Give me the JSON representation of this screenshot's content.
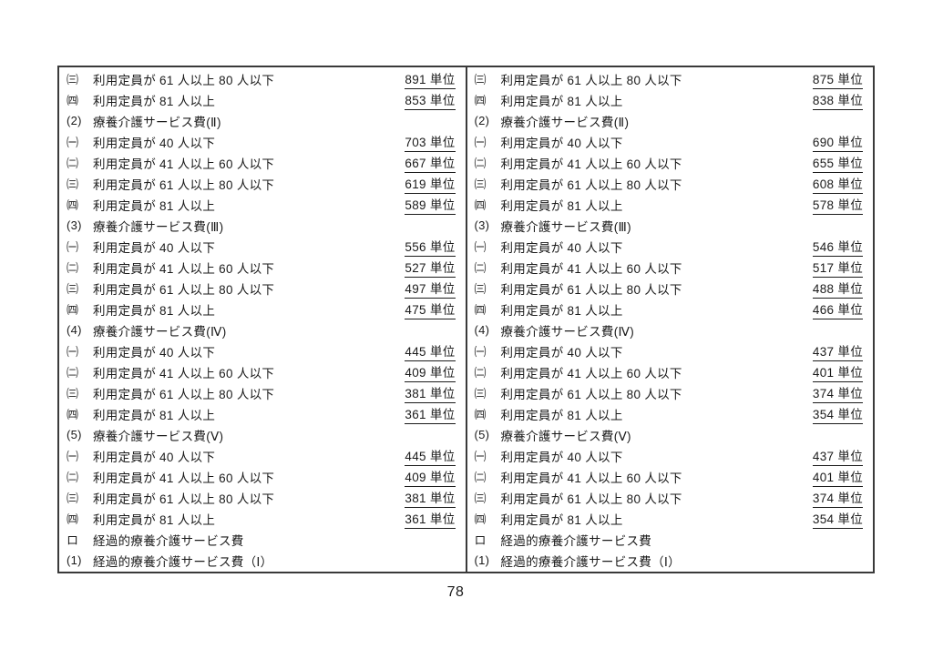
{
  "page": {
    "number": "78"
  },
  "table": {
    "border_color": "#3a3a3a",
    "text_color": "#1b1b1b"
  },
  "columns": [
    {
      "rows": [
        {
          "marker": "㈢",
          "label": "利用定員が 61 人以上 80 人以下",
          "value": "891 単位"
        },
        {
          "marker": "㈣",
          "label": "利用定員が 81 人以上",
          "value": "853 単位"
        },
        {
          "marker": "(2)",
          "label": "療養介護サービス費(Ⅱ)",
          "value": ""
        },
        {
          "marker": "㈠",
          "label": "利用定員が 40 人以下",
          "value": "703 単位"
        },
        {
          "marker": "㈡",
          "label": "利用定員が 41 人以上 60 人以下",
          "value": "667 単位"
        },
        {
          "marker": "㈢",
          "label": "利用定員が 61 人以上 80 人以下",
          "value": "619 単位"
        },
        {
          "marker": "㈣",
          "label": "利用定員が 81 人以上",
          "value": "589 単位"
        },
        {
          "marker": "(3)",
          "label": "療養介護サービス費(Ⅲ)",
          "value": ""
        },
        {
          "marker": "㈠",
          "label": "利用定員が 40 人以下",
          "value": "556 単位"
        },
        {
          "marker": "㈡",
          "label": "利用定員が 41 人以上 60 人以下",
          "value": "527 単位"
        },
        {
          "marker": "㈢",
          "label": "利用定員が 61 人以上 80 人以下",
          "value": "497 単位"
        },
        {
          "marker": "㈣",
          "label": "利用定員が 81 人以上",
          "value": "475 単位"
        },
        {
          "marker": "(4)",
          "label": "療養介護サービス費(Ⅳ)",
          "value": ""
        },
        {
          "marker": "㈠",
          "label": "利用定員が 40 人以下",
          "value": "445 単位"
        },
        {
          "marker": "㈡",
          "label": "利用定員が 41 人以上 60 人以下",
          "value": "409 単位"
        },
        {
          "marker": "㈢",
          "label": "利用定員が 61 人以上 80 人以下",
          "value": "381 単位"
        },
        {
          "marker": "㈣",
          "label": "利用定員が 81 人以上",
          "value": "361 単位"
        },
        {
          "marker": "(5)",
          "label": "療養介護サービス費(Ⅴ)",
          "value": ""
        },
        {
          "marker": "㈠",
          "label": "利用定員が 40 人以下",
          "value": "445 単位"
        },
        {
          "marker": "㈡",
          "label": "利用定員が 41 人以上 60 人以下",
          "value": "409 単位"
        },
        {
          "marker": "㈢",
          "label": "利用定員が 61 人以上 80 人以下",
          "value": "381 単位"
        },
        {
          "marker": "㈣",
          "label": "利用定員が 81 人以上",
          "value": "361 単位"
        },
        {
          "marker": "ロ",
          "label": "経過的療養介護サービス費",
          "value": ""
        },
        {
          "marker": "(1)",
          "label": "経過的療養介護サービス費（Ⅰ）",
          "value": ""
        }
      ]
    },
    {
      "rows": [
        {
          "marker": "㈢",
          "label": "利用定員が 61 人以上 80 人以下",
          "value": "875 単位"
        },
        {
          "marker": "㈣",
          "label": "利用定員が 81 人以上",
          "value": "838 単位"
        },
        {
          "marker": "(2)",
          "label": "療養介護サービス費(Ⅱ)",
          "value": ""
        },
        {
          "marker": "㈠",
          "label": "利用定員が 40 人以下",
          "value": "690 単位"
        },
        {
          "marker": "㈡",
          "label": "利用定員が 41 人以上 60 人以下",
          "value": "655 単位"
        },
        {
          "marker": "㈢",
          "label": "利用定員が 61 人以上 80 人以下",
          "value": "608 単位"
        },
        {
          "marker": "㈣",
          "label": "利用定員が 81 人以上",
          "value": "578 単位"
        },
        {
          "marker": "(3)",
          "label": "療養介護サービス費(Ⅲ)",
          "value": ""
        },
        {
          "marker": "㈠",
          "label": "利用定員が 40 人以下",
          "value": "546 単位"
        },
        {
          "marker": "㈡",
          "label": "利用定員が 41 人以上 60 人以下",
          "value": "517 単位"
        },
        {
          "marker": "㈢",
          "label": "利用定員が 61 人以上 80 人以下",
          "value": "488 単位"
        },
        {
          "marker": "㈣",
          "label": "利用定員が 81 人以上",
          "value": "466 単位"
        },
        {
          "marker": "(4)",
          "label": "療養介護サービス費(Ⅳ)",
          "value": ""
        },
        {
          "marker": "㈠",
          "label": "利用定員が 40 人以下",
          "value": "437 単位"
        },
        {
          "marker": "㈡",
          "label": "利用定員が 41 人以上 60 人以下",
          "value": "401 単位"
        },
        {
          "marker": "㈢",
          "label": "利用定員が 61 人以上 80 人以下",
          "value": "374 単位"
        },
        {
          "marker": "㈣",
          "label": "利用定員が 81 人以上",
          "value": "354 単位"
        },
        {
          "marker": "(5)",
          "label": "療養介護サービス費(Ⅴ)",
          "value": ""
        },
        {
          "marker": "㈠",
          "label": "利用定員が 40 人以下",
          "value": "437 単位"
        },
        {
          "marker": "㈡",
          "label": "利用定員が 41 人以上 60 人以下",
          "value": "401 単位"
        },
        {
          "marker": "㈢",
          "label": "利用定員が 61 人以上 80 人以下",
          "value": "374 単位"
        },
        {
          "marker": "㈣",
          "label": "利用定員が 81 人以上",
          "value": "354 単位"
        },
        {
          "marker": "ロ",
          "label": "経過的療養介護サービス費",
          "value": ""
        },
        {
          "marker": "(1)",
          "label": "経過的療養介護サービス費（Ⅰ）",
          "value": ""
        }
      ]
    }
  ]
}
